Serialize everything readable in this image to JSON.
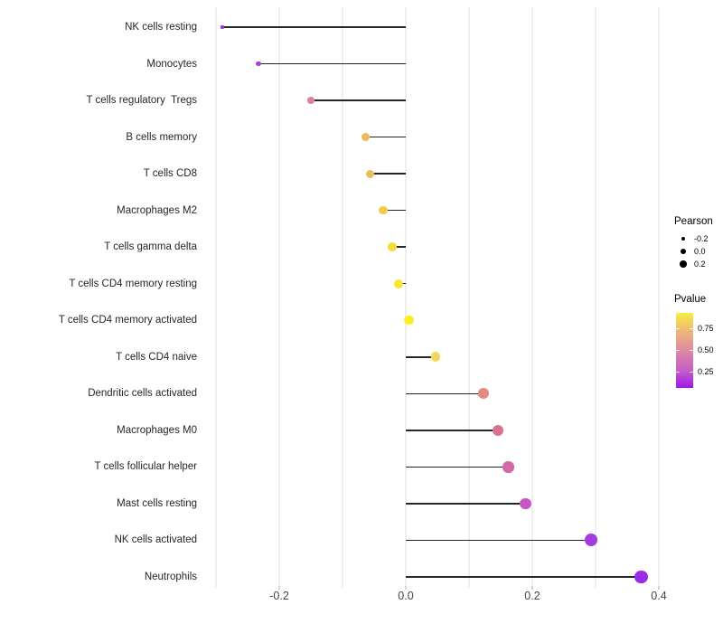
{
  "chart_data": {
    "type": "lollipop",
    "orientation": "horizontal",
    "title": "",
    "xlabel": "",
    "ylabel": "",
    "x_axis": {
      "tick_values": [
        -0.2,
        0.0,
        0.2,
        0.4
      ],
      "tick_labels": [
        "-0.2",
        "0.0",
        "0.2",
        "0.4"
      ],
      "range": [
        -0.324,
        0.41
      ],
      "grid_values": [
        -0.3,
        -0.2,
        -0.1,
        0.0,
        0.1,
        0.2,
        0.3,
        0.4
      ],
      "grid": "vertical-only"
    },
    "rows": [
      {
        "label": "NK cells resting",
        "pearson": -0.29,
        "pvalue_approx": 0.13,
        "color": "#9D35CE"
      },
      {
        "label": "Monocytes",
        "pearson": -0.233,
        "pvalue_approx": 0.18,
        "color": "#B23FCC"
      },
      {
        "label": "T cells regulatory  Tregs",
        "pearson": -0.15,
        "pvalue_approx": 0.48,
        "color": "#DB7FA5"
      },
      {
        "label": "B cells memory",
        "pearson": -0.064,
        "pvalue_approx": 0.72,
        "color": "#EFB95D"
      },
      {
        "label": "T cells CD8",
        "pearson": -0.057,
        "pvalue_approx": 0.72,
        "color": "#EFBA5E"
      },
      {
        "label": "Macrophages M2",
        "pearson": -0.036,
        "pvalue_approx": 0.8,
        "color": "#F3CC4B"
      },
      {
        "label": "T cells gamma delta",
        "pearson": -0.021,
        "pvalue_approx": 0.85,
        "color": "#F6DC38"
      },
      {
        "label": "T cells CD4 memory resting",
        "pearson": -0.011,
        "pvalue_approx": 0.89,
        "color": "#F8E52C"
      },
      {
        "label": "T cells CD4 memory activated",
        "pearson": 0.005,
        "pvalue_approx": 0.93,
        "color": "#FAED20"
      },
      {
        "label": "T cells CD4 naive",
        "pearson": 0.047,
        "pvalue_approx": 0.83,
        "color": "#F2D75A"
      },
      {
        "label": "Dendritic cells activated",
        "pearson": 0.123,
        "pvalue_approx": 0.62,
        "color": "#E28A7E"
      },
      {
        "label": "Macrophages M0",
        "pearson": 0.146,
        "pvalue_approx": 0.52,
        "color": "#DB7390"
      },
      {
        "label": "T cells follicular helper",
        "pearson": 0.162,
        "pvalue_approx": 0.44,
        "color": "#D467A8"
      },
      {
        "label": "Mast cells resting",
        "pearson": 0.189,
        "pvalue_approx": 0.3,
        "color": "#C657C4"
      },
      {
        "label": "NK cells activated",
        "pearson": 0.293,
        "pvalue_approx": 0.15,
        "color": "#A43BDF"
      },
      {
        "label": "Neutrophils",
        "pearson": 0.372,
        "pvalue_approx": 0.09,
        "color": "#9B2BE6"
      }
    ],
    "legends": {
      "size": {
        "title": "Pearson",
        "entries": [
          "-0.2",
          "0.0",
          "0.2"
        ]
      },
      "color": {
        "title": "Pvalue",
        "tick_labels": [
          "0.75",
          "0.50",
          "0.25"
        ],
        "gradient_top_to_bottom": [
          "#FAED42",
          "#F0BE72",
          "#DE8AA3",
          "#C35BC8",
          "#A016EE"
        ]
      }
    },
    "stem_color": "#262626",
    "background_color": "#ffffff"
  }
}
